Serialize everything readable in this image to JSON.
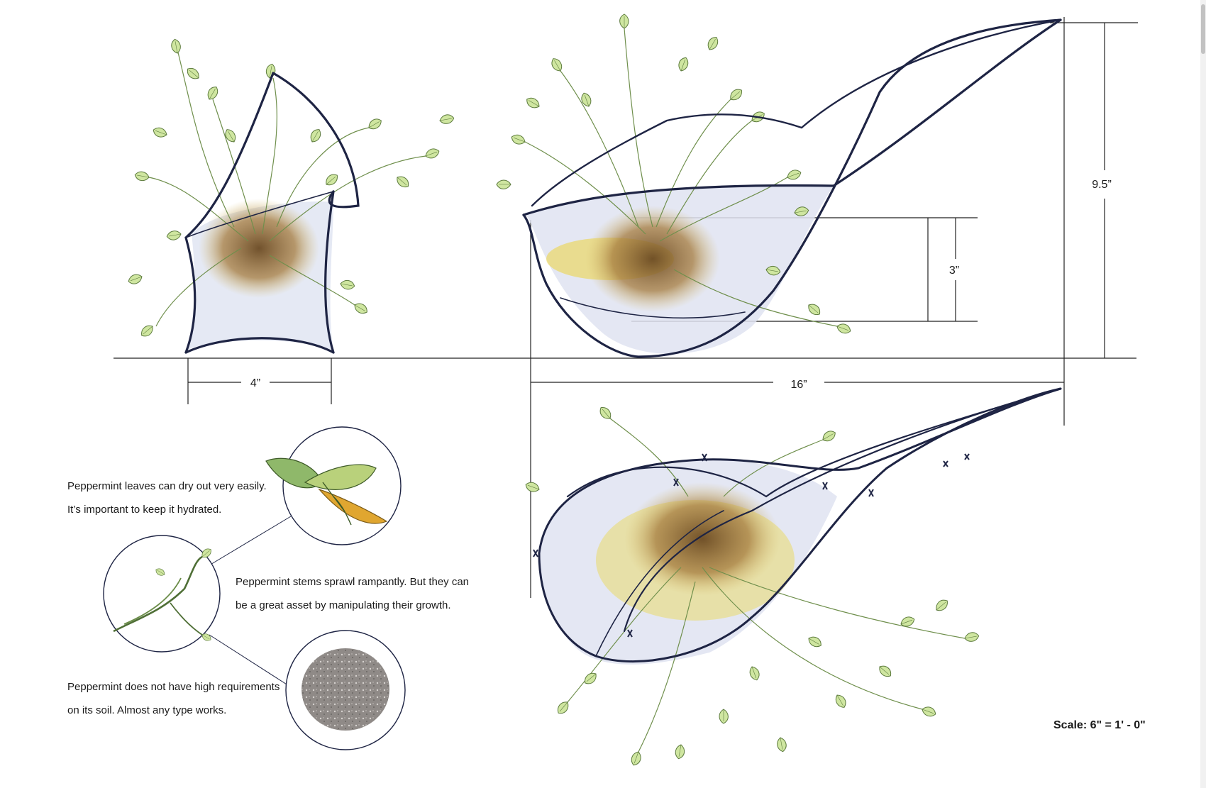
{
  "dimensions": {
    "base_width": "4”",
    "length": "16”",
    "height": "9.5”",
    "pot_depth": "3”"
  },
  "notes": {
    "leaves_line1": "Peppermint leaves can dry out very easily.",
    "leaves_line2": "It’s important to keep it hydrated.",
    "stems_line1": "Peppermint stems sprawl rampantly. But they can",
    "stems_line2": "be a great asset by manipulating their growth.",
    "soil_line1": "Peppermint does not have high requirements",
    "soil_line2": "on its soil. Almost any type works."
  },
  "scale_label": "Scale: 6\" = 1' - 0\"",
  "colors": {
    "ink": "#1e2444",
    "wash": "#c7cde3",
    "leaf": "#cfe6a0",
    "leaf_edge": "#6e8f4a",
    "root": "#8a6a3a",
    "soil_yellow": "#e6cd3c",
    "soil_gray": "#8a8583"
  }
}
